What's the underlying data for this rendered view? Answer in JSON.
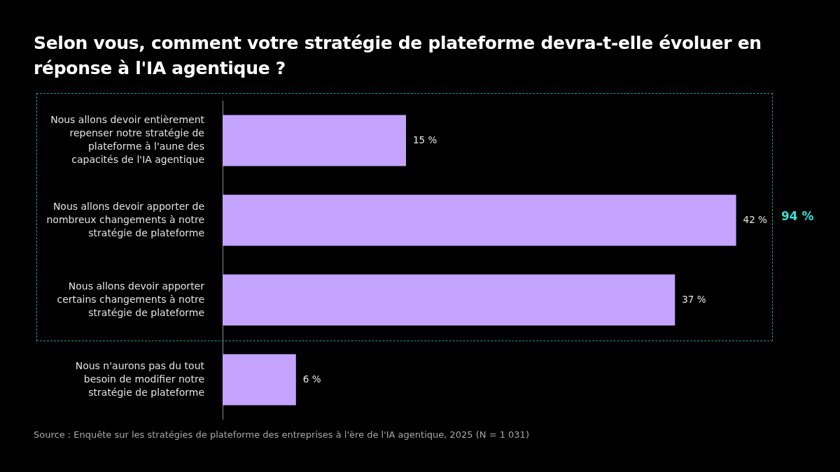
{
  "chart_data": {
    "type": "bar",
    "orientation": "horizontal",
    "title": "Selon vous, comment votre stratégie de plateforme devra-t-elle évoluer en réponse à l'IA agentique ?",
    "categories": [
      "Nous allons devoir entièrement repenser notre stratégie de plateforme à l'aune des capacités de l'IA agentique",
      "Nous allons devoir apporter de nombreux changements à notre stratégie de plateforme",
      "Nous allons devoir apporter certains changements à notre stratégie de plateforme",
      "Nous n'aurons pas du tout besoin de modifier notre stratégie de plateforme"
    ],
    "values": [
      15,
      42,
      37,
      6
    ],
    "color": "#c4a3ff",
    "value_labels": [
      "15 %",
      "42 %",
      "37 %",
      "6 %"
    ],
    "tick_labels": "y",
    "annotations": [
      "94 %",
      "Source : Enquête sur les stratégies de plateforme des entreprises à l'ère de l'IA agentique, 2025 (N = 1 031)"
    ]
  }
}
